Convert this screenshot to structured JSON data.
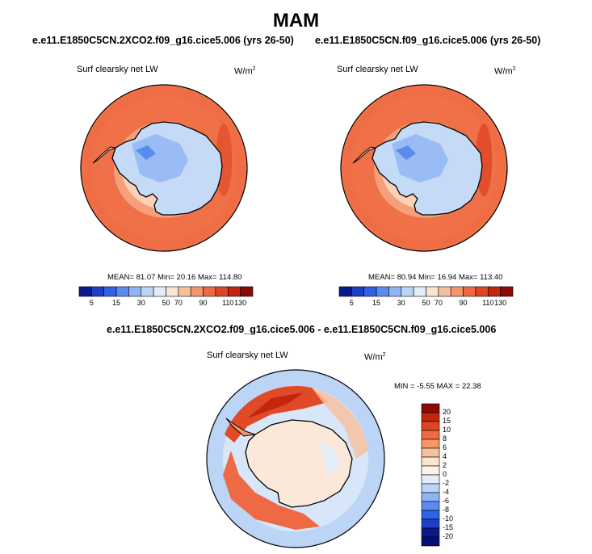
{
  "main_title": "MAM",
  "panels": [
    {
      "case_title": "e.e11.E1850C5CN.2XCO2.f09_g16.cice5.006 (yrs 26-50)",
      "variable": "Surf clearsky net LW",
      "unit_base": "W/m",
      "unit_exp": "2",
      "stats": "MEAN=  81.07  Min=  20.16  Max= 114.80"
    },
    {
      "case_title": "e.e11.E1850C5CN.f09_g16.cice5.006 (yrs 26-50)",
      "variable": "Surf clearsky net LW",
      "unit_base": "W/m",
      "unit_exp": "2",
      "stats": "MEAN=  80.94  Min=  16.94  Max= 113.40"
    }
  ],
  "diff": {
    "title": "e.e11.E1850C5CN.2XCO2.f09_g16.cice5.006 - e.e11.E1850C5CN.f09_g16.cice5.006",
    "variable": "Surf clearsky net LW",
    "unit_base": "W/m",
    "unit_exp": "2",
    "minmax": "MIN =  -5.55 MAX =  22.38"
  },
  "chart_data": [
    {
      "type": "heatmap",
      "projection": "south-polar-stereographic",
      "title": "e.e11.E1850C5CN.2XCO2.f09_g16.cice5.006 (yrs 26-50)",
      "variable": "Surf clearsky net LW",
      "units": "W/m2",
      "mean": 81.07,
      "min": 20.16,
      "max": 114.8,
      "colorbar_ticks": [
        "5",
        "15",
        "30",
        "50",
        "70",
        "90",
        "110",
        "130"
      ],
      "colorbar_colors": [
        "#0a1a8c",
        "#1d3fc4",
        "#2f62e6",
        "#5a8cf0",
        "#8fb4f4",
        "#bcd4f6",
        "#e4eefa",
        "#fbe4d2",
        "#f7c09c",
        "#f3966c",
        "#ee6a44",
        "#df4424",
        "#c4250e",
        "#8c0a04"
      ]
    },
    {
      "type": "heatmap",
      "projection": "south-polar-stereographic",
      "title": "e.e11.E1850C5CN.f09_g16.cice5.006 (yrs 26-50)",
      "variable": "Surf clearsky net LW",
      "units": "W/m2",
      "mean": 80.94,
      "min": 16.94,
      "max": 113.4,
      "colorbar_ticks": [
        "5",
        "15",
        "30",
        "50",
        "70",
        "90",
        "110",
        "130"
      ],
      "colorbar_colors": [
        "#0a1a8c",
        "#1d3fc4",
        "#2f62e6",
        "#5a8cf0",
        "#8fb4f4",
        "#bcd4f6",
        "#e4eefa",
        "#fbe4d2",
        "#f7c09c",
        "#f3966c",
        "#ee6a44",
        "#df4424",
        "#c4250e",
        "#8c0a04"
      ]
    },
    {
      "type": "heatmap",
      "projection": "south-polar-stereographic",
      "title": "e.e11.E1850C5CN.2XCO2.f09_g16.cice5.006 - e.e11.E1850C5CN.f09_g16.cice5.006",
      "variable": "Surf clearsky net LW",
      "units": "W/m2",
      "min": -5.55,
      "max": 22.38,
      "colorbar_ticks": [
        "20",
        "15",
        "10",
        "8",
        "6",
        "4",
        "2",
        "0",
        "-2",
        "-4",
        "-6",
        "-8",
        "-10",
        "-15",
        "-20"
      ],
      "colorbar_colors": [
        "#8c0a04",
        "#c4250e",
        "#df4424",
        "#ee6a44",
        "#f3966c",
        "#f7c09c",
        "#fbe4d2",
        "#fdf3ea",
        "#e4eefa",
        "#bcd4f6",
        "#8fb4f4",
        "#5a8cf0",
        "#2f62e6",
        "#1d3fc4",
        "#0a1a8c",
        "#061070"
      ]
    }
  ]
}
